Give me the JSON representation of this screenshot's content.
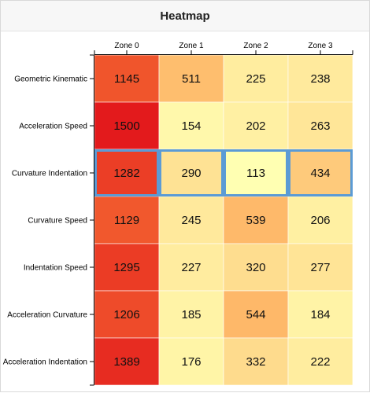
{
  "window": {
    "title": "Heatmap"
  },
  "chart_data": {
    "type": "heatmap",
    "title": "Heatmap",
    "x_categories": [
      "Zone 0",
      "Zone 1",
      "Zone 2",
      "Zone 3"
    ],
    "y_categories": [
      "Geometric Kinematic",
      "Acceleration Speed",
      "Curvature Indentation",
      "Curvature Speed",
      "Indentation Speed",
      "Acceleration Curvature",
      "Acceleration Indentation"
    ],
    "values": [
      [
        1145,
        511,
        225,
        238
      ],
      [
        1500,
        154,
        202,
        263
      ],
      [
        1282,
        290,
        113,
        434
      ],
      [
        1129,
        245,
        539,
        206
      ],
      [
        1295,
        227,
        320,
        277
      ],
      [
        1206,
        185,
        544,
        184
      ],
      [
        1389,
        176,
        332,
        222
      ]
    ],
    "color_scale": {
      "low": "#ffffb2",
      "mid": "#fd8d3c",
      "high": "#e31a1c",
      "min": 113,
      "max": 1500
    },
    "highlighted_row": "Curvature Indentation",
    "highlight_color": "#5b9bd5",
    "x_axis_position": "top",
    "legend": "none",
    "grid": false
  }
}
